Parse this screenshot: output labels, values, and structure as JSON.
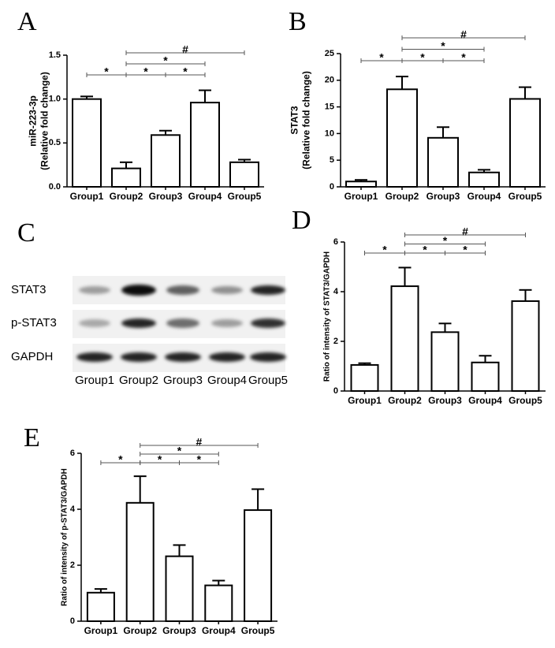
{
  "chart_data": [
    {
      "type": "bar",
      "panel": "A",
      "y_label": [
        "miR-223-3p",
        "(Relative fold change)"
      ],
      "categories": [
        "Group1",
        "Group2",
        "Group3",
        "Group4",
        "Group5"
      ],
      "values": [
        1.0,
        0.21,
        0.59,
        0.96,
        0.28
      ],
      "errors": [
        0.03,
        0.07,
        0.05,
        0.14,
        0.03
      ],
      "ylim": [
        0,
        1.5
      ],
      "yticks": [
        {
          "value": 0,
          "label": "0.0"
        },
        0.5,
        {
          "value": 1,
          "label": "1.0"
        },
        1.5
      ],
      "brackets": [
        {
          "from": 0,
          "to": 1,
          "label": "*"
        },
        {
          "from": 1,
          "to": 2,
          "label": "*"
        },
        {
          "from": 2,
          "to": 3,
          "label": "*"
        },
        {
          "from": 1,
          "to": 3,
          "label": "*"
        },
        {
          "from": 1,
          "to": 4,
          "label": "#"
        }
      ]
    },
    {
      "type": "bar",
      "panel": "B",
      "y_label": [
        "STAT3",
        "(Relative fold change)"
      ],
      "categories": [
        "Group1",
        "Group2",
        "Group3",
        "Group4",
        "Group5"
      ],
      "values": [
        1.0,
        18.3,
        9.2,
        2.7,
        16.5
      ],
      "errors": [
        0.3,
        2.4,
        2.0,
        0.5,
        2.2
      ],
      "ylim": [
        0,
        25
      ],
      "yticks": [
        0,
        5,
        10,
        15,
        20,
        25
      ],
      "brackets": [
        {
          "from": 0,
          "to": 1,
          "label": "*"
        },
        {
          "from": 1,
          "to": 2,
          "label": "*"
        },
        {
          "from": 2,
          "to": 3,
          "label": "*"
        },
        {
          "from": 1,
          "to": 3,
          "label": "*"
        },
        {
          "from": 1,
          "to": 4,
          "label": "#"
        }
      ]
    },
    {
      "type": "bar",
      "panel": "D",
      "y_label": [
        "Ratio of intensity of STAT3/GAPDH"
      ],
      "categories": [
        "Group1",
        "Group2",
        "Group3",
        "Group4",
        "Group5"
      ],
      "values": [
        1.05,
        4.22,
        2.37,
        1.15,
        3.62
      ],
      "errors": [
        0.07,
        0.75,
        0.35,
        0.27,
        0.45
      ],
      "ylim": [
        0,
        6
      ],
      "yticks": [
        0,
        2,
        4,
        6
      ],
      "brackets": [
        {
          "from": 0,
          "to": 1,
          "label": "*"
        },
        {
          "from": 1,
          "to": 2,
          "label": "*"
        },
        {
          "from": 2,
          "to": 3,
          "label": "*"
        },
        {
          "from": 1,
          "to": 3,
          "label": "*"
        },
        {
          "from": 1,
          "to": 4,
          "label": "#"
        }
      ]
    },
    {
      "type": "bar",
      "panel": "E",
      "y_label": [
        "Ratio of intensity of p-STAT3/GAPDH"
      ],
      "categories": [
        "Group1",
        "Group2",
        "Group3",
        "Group4",
        "Group5"
      ],
      "values": [
        1.02,
        4.23,
        2.32,
        1.28,
        3.97
      ],
      "errors": [
        0.13,
        0.95,
        0.4,
        0.17,
        0.75
      ],
      "ylim": [
        0,
        6
      ],
      "yticks": [
        0,
        2,
        4,
        6
      ],
      "brackets": [
        {
          "from": 0,
          "to": 1,
          "label": "*"
        },
        {
          "from": 1,
          "to": 2,
          "label": "*"
        },
        {
          "from": 2,
          "to": 3,
          "label": "*"
        },
        {
          "from": 1,
          "to": 3,
          "label": "*"
        },
        {
          "from": 1,
          "to": 4,
          "label": "#"
        }
      ]
    }
  ],
  "blot": {
    "panel": "C",
    "rows": [
      "STAT3",
      "p-STAT3",
      "GAPDH"
    ],
    "lanes": [
      "Group1",
      "Group2",
      "Group3",
      "Group4",
      "Group5"
    ]
  }
}
